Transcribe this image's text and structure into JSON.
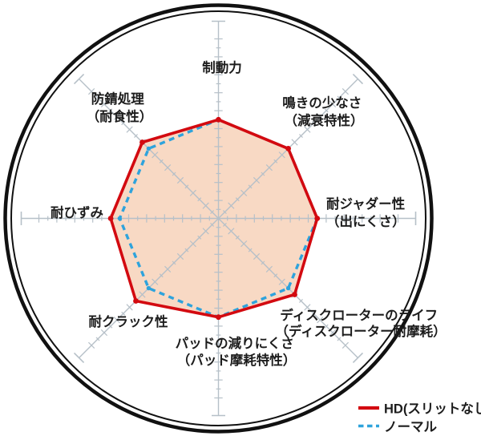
{
  "chart_data": {
    "type": "radar",
    "axes": [
      {
        "id": "braking-power",
        "label_lines": [
          "制動力"
        ]
      },
      {
        "id": "low-squeal",
        "label_lines": [
          "鳴きの少なさ",
          "（減衰特性）"
        ]
      },
      {
        "id": "judder-resistance",
        "label_lines": [
          "耐ジャダー性",
          "（出にくさ）"
        ]
      },
      {
        "id": "rotor-life",
        "label_lines": [
          "ディスクローターのライフ",
          "（ディスクローター耐摩耗）"
        ]
      },
      {
        "id": "pad-wear-resistance",
        "label_lines": [
          "パッドの減りにくさ",
          "（パッド摩耗特性）"
        ]
      },
      {
        "id": "crack-resistance",
        "label_lines": [
          "耐クラック性"
        ]
      },
      {
        "id": "distortion-resistance",
        "label_lines": [
          "耐ひずみ"
        ]
      },
      {
        "id": "rust-proofing",
        "label_lines": [
          "防錆処理",
          "（耐食性）"
        ]
      }
    ],
    "series": [
      {
        "name": "HD(スリットなし)",
        "color": "#d30a10",
        "style": "solid",
        "values": [
          5.5,
          5.5,
          5.5,
          6,
          5.5,
          6.5,
          6,
          6
        ]
      },
      {
        "name": "ノーマル",
        "color": "#2ea3dc",
        "style": "dashed",
        "values": [
          5.5,
          5.5,
          5.5,
          5.5,
          5.5,
          5.5,
          5.5,
          5.5
        ]
      }
    ],
    "axis_range": [
      0,
      11
    ],
    "tick_interval": 1,
    "grid": "radial-cross-ticks",
    "legend_position": "bottom-right",
    "fill_color": "#f8d9c4",
    "axis_color": "#b6c0c8",
    "ring_color": "#111111",
    "legend": [
      {
        "label": "HD(スリットなし)",
        "color": "#d30a10",
        "style": "solid"
      },
      {
        "label": "ノーマル",
        "color": "#2ea3dc",
        "style": "dashed"
      }
    ]
  }
}
